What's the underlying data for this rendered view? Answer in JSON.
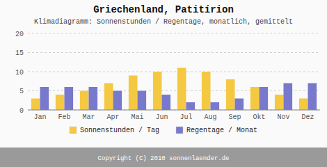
{
  "chart_data": {
    "type": "bar",
    "title": "Griechenland, Patitírion",
    "subtitle": "Klimadiagramm: Sonnenstunden / Regentage, monatlich, gemittelt",
    "categories": [
      "Jan",
      "Feb",
      "Mar",
      "Apr",
      "Mai",
      "Jun",
      "Jul",
      "Aug",
      "Sep",
      "Okt",
      "Nov",
      "Dez"
    ],
    "series": [
      {
        "name": "Sonnenstunden / Tag",
        "color": "#F5C842",
        "values": [
          3,
          4,
          5,
          7,
          9,
          10,
          11,
          10,
          8,
          6,
          4,
          3
        ]
      },
      {
        "name": "Regentage / Monat",
        "color": "#7878CC",
        "values": [
          6,
          6,
          6,
          5,
          5,
          4,
          2,
          2,
          3,
          6,
          7,
          7
        ]
      }
    ],
    "ylim": [
      0,
      20
    ],
    "yticks": [
      0,
      5,
      10,
      15,
      20
    ],
    "grid": true,
    "legend": "bottom",
    "annotations": [
      "Copyright (C) 2010 sonnenlaender.de"
    ]
  }
}
